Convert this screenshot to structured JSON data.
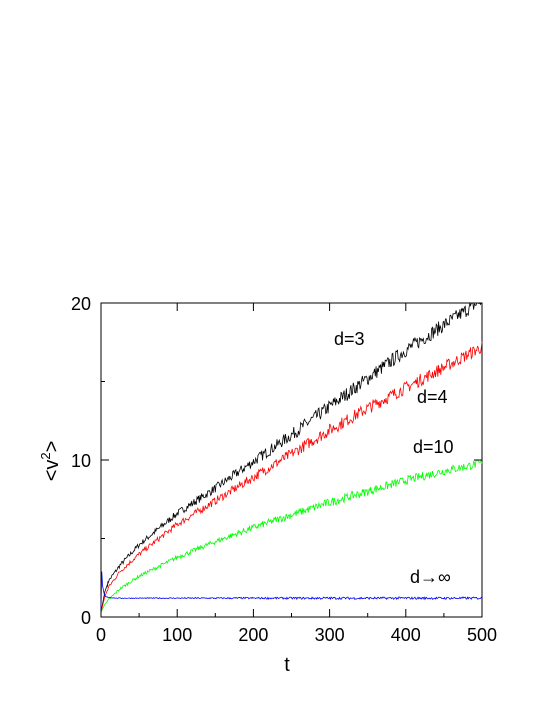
{
  "chart_data": {
    "type": "line",
    "xlabel": "t",
    "ylabel": "<v",
    "ylabel_sup": "2",
    "ylabel_close": ">",
    "xlim": [
      0,
      500
    ],
    "ylim": [
      0,
      20
    ],
    "xticks": [
      0,
      100,
      200,
      300,
      400,
      500
    ],
    "yticks": [
      0,
      10,
      20
    ],
    "grid": false,
    "legend": "none",
    "series": [
      {
        "label": "d=3",
        "color": "#000000",
        "x": [
          0,
          5,
          10,
          25,
          50,
          100,
          150,
          200,
          250,
          300,
          350,
          400,
          450,
          500
        ],
        "y": [
          0.3,
          1.6,
          2.3,
          3.3,
          4.6,
          6.6,
          8.2,
          9.9,
          11.6,
          13.4,
          15.2,
          17.0,
          18.6,
          20.2
        ]
      },
      {
        "label": "d=4",
        "color": "#ff0000",
        "x": [
          0,
          5,
          10,
          25,
          50,
          100,
          150,
          200,
          250,
          300,
          350,
          400,
          450,
          500
        ],
        "y": [
          0.3,
          1.3,
          1.9,
          2.9,
          4.0,
          5.9,
          7.4,
          8.9,
          10.4,
          11.9,
          13.3,
          14.6,
          15.9,
          17.2
        ]
      },
      {
        "label": "d=10",
        "color": "#00ff00",
        "x": [
          0,
          5,
          10,
          25,
          50,
          100,
          150,
          200,
          250,
          300,
          350,
          400,
          450,
          500
        ],
        "y": [
          0.3,
          0.8,
          1.1,
          1.8,
          2.6,
          3.8,
          4.8,
          5.7,
          6.5,
          7.3,
          8.0,
          8.7,
          9.3,
          9.8
        ]
      },
      {
        "label": "d→∞",
        "color": "#0000ff",
        "x": [
          0,
          1,
          2,
          4,
          6,
          10,
          20,
          50,
          100,
          200,
          300,
          400,
          500
        ],
        "y": [
          0.5,
          2.9,
          2.0,
          1.5,
          1.3,
          1.25,
          1.2,
          1.2,
          1.2,
          1.2,
          1.2,
          1.2,
          1.2
        ]
      }
    ]
  }
}
